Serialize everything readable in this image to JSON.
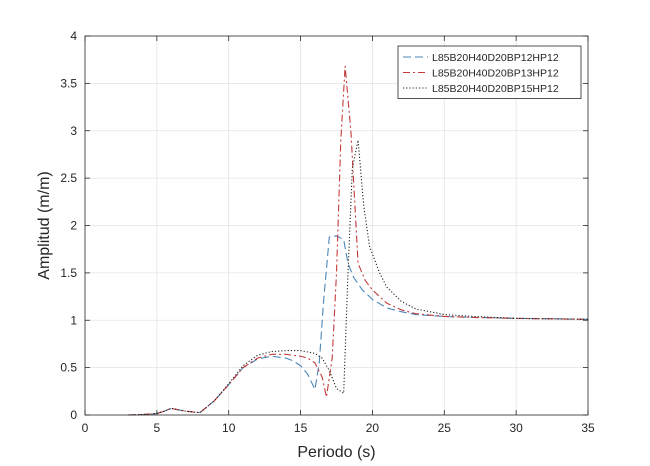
{
  "chart_data": {
    "type": "line",
    "xlabel": "Periodo (s)",
    "ylabel": "Amplitud (m/m)",
    "xlim": [
      0,
      35
    ],
    "ylim": [
      0,
      4
    ],
    "xticks": [
      "0",
      "5",
      "10",
      "15",
      "20",
      "25",
      "30",
      "35"
    ],
    "yticks": [
      "0",
      "0.5",
      "1",
      "1.5",
      "2",
      "2.5",
      "3",
      "3.5",
      "4"
    ],
    "grid": true,
    "legend_position": "top-right",
    "series": [
      {
        "name": "L85B20H40D20BP12HP12",
        "color": "#4a86b8",
        "style": "dashed",
        "x": [
          3,
          4,
          5,
          5.5,
          6,
          6.5,
          7,
          8,
          9,
          10,
          11,
          12,
          13,
          14,
          14.5,
          15,
          15.5,
          16,
          16.3,
          16.6,
          17,
          17.5,
          18,
          18.3,
          18.7,
          19.3,
          20,
          21,
          22,
          23,
          25,
          27,
          30,
          35
        ],
        "y": [
          0,
          0.005,
          0.015,
          0.04,
          0.07,
          0.055,
          0.04,
          0.025,
          0.15,
          0.32,
          0.5,
          0.59,
          0.62,
          0.6,
          0.57,
          0.52,
          0.43,
          0.27,
          0.55,
          1.2,
          1.88,
          1.89,
          1.85,
          1.6,
          1.45,
          1.32,
          1.22,
          1.13,
          1.09,
          1.06,
          1.04,
          1.03,
          1.02,
          1.01
        ]
      },
      {
        "name": "L85B20H40D20BP13HP12",
        "color": "#c43a3a",
        "style": "dashdot",
        "x": [
          3,
          4,
          5,
          5.5,
          6,
          6.5,
          7,
          8,
          9,
          10,
          11,
          12,
          13,
          14,
          15,
          15.5,
          16,
          16.5,
          16.8,
          17.2,
          17.5,
          17.8,
          18.1,
          18.5,
          19,
          19.5,
          20,
          21,
          22,
          23,
          25,
          27,
          30,
          35
        ],
        "y": [
          0,
          0.005,
          0.015,
          0.04,
          0.07,
          0.055,
          0.04,
          0.025,
          0.15,
          0.32,
          0.5,
          0.6,
          0.64,
          0.64,
          0.62,
          0.6,
          0.55,
          0.4,
          0.19,
          0.6,
          1.5,
          2.9,
          3.68,
          3.0,
          1.6,
          1.42,
          1.32,
          1.18,
          1.11,
          1.07,
          1.04,
          1.03,
          1.02,
          1.01
        ]
      },
      {
        "name": "L85B20H40D20BP15HP12",
        "color": "#222222",
        "style": "dotted",
        "x": [
          3,
          4,
          5,
          5.5,
          6,
          6.5,
          7,
          8,
          9,
          10,
          11,
          12,
          13,
          14,
          15,
          16,
          16.5,
          17,
          17.5,
          18,
          18.3,
          18.6,
          19,
          19.4,
          19.8,
          20.5,
          21,
          22,
          23,
          25,
          27,
          30,
          35
        ],
        "y": [
          0,
          0.005,
          0.015,
          0.04,
          0.07,
          0.055,
          0.04,
          0.025,
          0.15,
          0.33,
          0.52,
          0.63,
          0.67,
          0.68,
          0.68,
          0.65,
          0.6,
          0.47,
          0.28,
          0.23,
          1.5,
          2.6,
          2.9,
          2.2,
          1.78,
          1.5,
          1.35,
          1.2,
          1.12,
          1.06,
          1.04,
          1.02,
          1.01
        ]
      }
    ]
  }
}
